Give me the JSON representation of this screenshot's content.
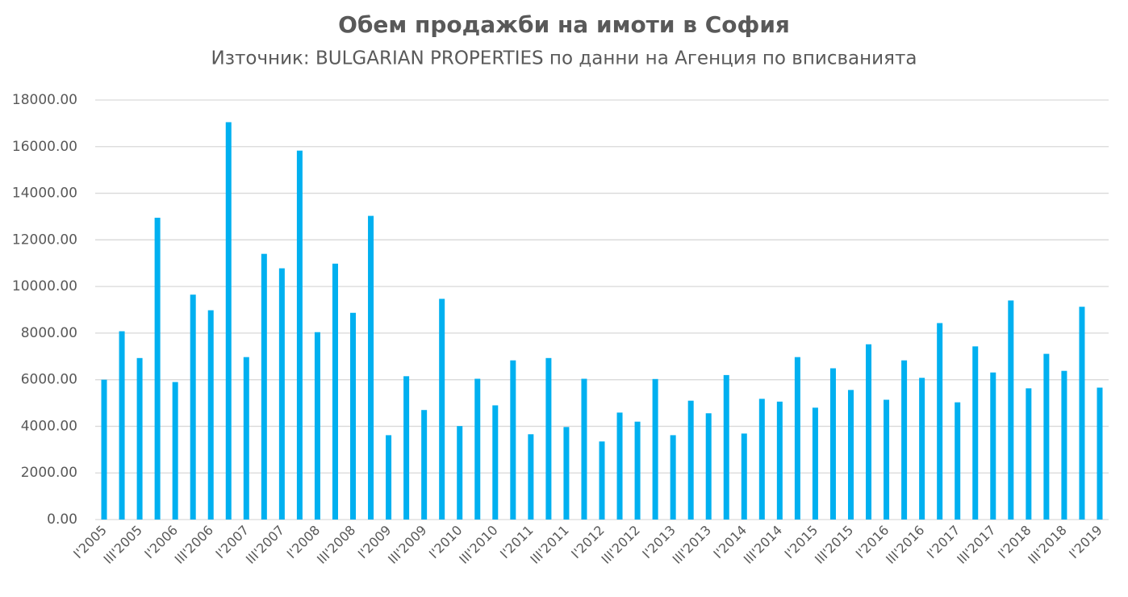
{
  "chart_data": {
    "type": "bar",
    "title": "Обем продажби на имоти в София",
    "subtitle": "Източник: BULGARIAN PROPERTIES по данни на Агенция по вписванията",
    "categories": [
      "I'2005",
      null,
      "III'2005",
      null,
      "I'2006",
      null,
      "III'2006",
      null,
      "I'2007",
      null,
      "III'2007",
      null,
      "I'2008",
      null,
      "III'2008",
      null,
      "I'2009",
      null,
      "III'2009",
      null,
      "I'2010",
      null,
      "III'2010",
      null,
      "I'2011",
      null,
      "III'2011",
      null,
      "I'2012",
      null,
      "III'2012",
      null,
      "I'2013",
      null,
      "III'2013",
      null,
      "I'2014",
      null,
      "III'2014",
      null,
      "I'2015",
      null,
      "III'2015",
      null,
      "I'2016",
      null,
      "III'2016",
      null,
      "I'2017",
      null,
      "III'2017",
      null,
      "I'2018",
      null,
      "III'2018",
      null,
      "I'2019"
    ],
    "values": [
      6000,
      8080,
      6930,
      12950,
      5900,
      9650,
      8980,
      17050,
      6970,
      11400,
      10780,
      15830,
      8040,
      10980,
      8870,
      13030,
      3620,
      6150,
      4700,
      9470,
      4010,
      6040,
      4900,
      6830,
      3660,
      6930,
      3970,
      6040,
      3350,
      4590,
      4200,
      6030,
      3620,
      5100,
      4560,
      6200,
      3690,
      5180,
      5060,
      6970,
      4800,
      6490,
      5560,
      7520,
      5140,
      6830,
      6080,
      8430,
      5030,
      7430,
      6310,
      9400,
      5630,
      7110,
      6380,
      9130,
      5660
    ],
    "color": "#00b0f0",
    "ylim": [
      0,
      18000
    ],
    "yticks": [
      {
        "value": 0,
        "label": "0.00"
      },
      {
        "value": 2000,
        "label": "2000.00"
      },
      {
        "value": 4000,
        "label": "4000.00"
      },
      {
        "value": 6000,
        "label": "6000.00"
      },
      {
        "value": 8000,
        "label": "8000.00"
      },
      {
        "value": 10000,
        "label": "10000.00"
      },
      {
        "value": 12000,
        "label": "12000.00"
      },
      {
        "value": 14000,
        "label": "14000.00"
      },
      {
        "value": 16000,
        "label": "16000.00"
      },
      {
        "value": 18000,
        "label": "18000.00"
      }
    ],
    "grid": true
  }
}
